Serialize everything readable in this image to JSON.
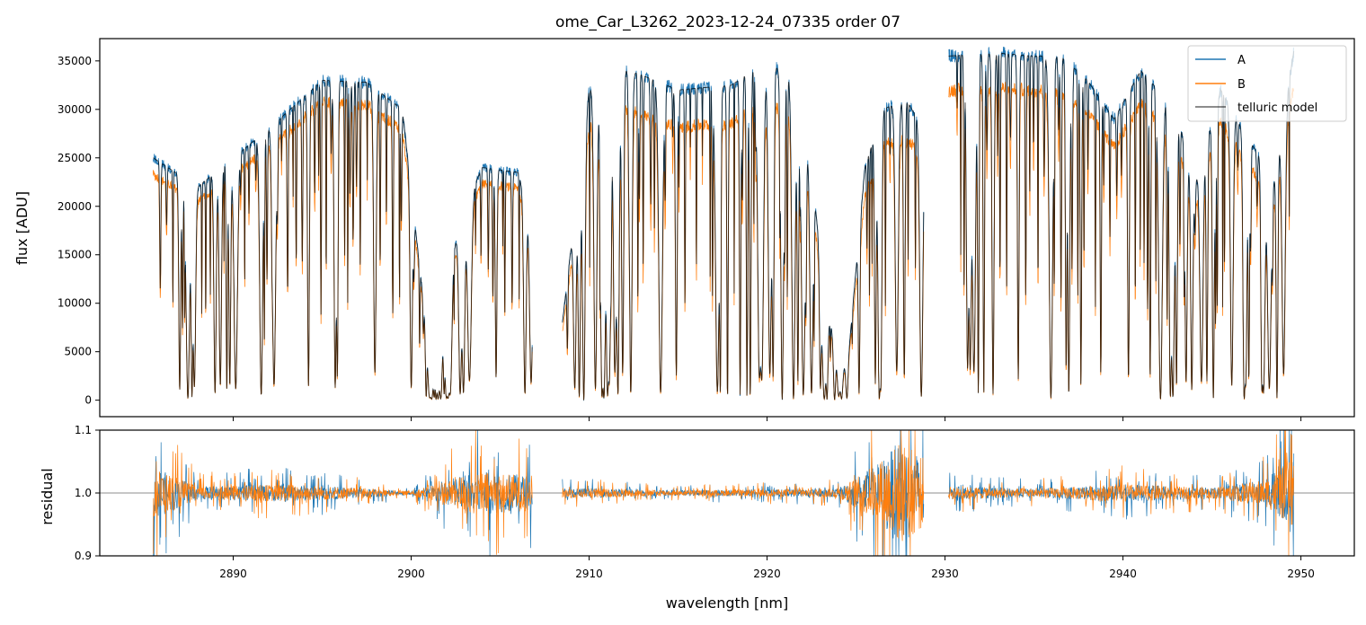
{
  "chart_data": [
    {
      "panel": "flux",
      "type": "line",
      "title": "ome_Car_L3262_2023-12-24_07335  order 07",
      "xlabel": "",
      "ylabel": "flux [ADU]",
      "xlim": [
        2882.5,
        2953.0
      ],
      "ylim": [
        -1700,
        37300
      ],
      "yticks": [
        0,
        5000,
        10000,
        15000,
        20000,
        25000,
        30000,
        35000
      ],
      "ytick_labels": [
        "0",
        "5000",
        "10000",
        "15000",
        "20000",
        "25000",
        "30000",
        "35000"
      ],
      "xticks": [
        2890,
        2900,
        2910,
        2920,
        2930,
        2940,
        2950
      ],
      "legend": {
        "position": "top-right",
        "entries": [
          {
            "label": "A",
            "color": "#1f77b4"
          },
          {
            "label": "B",
            "color": "#ff7f0e"
          },
          {
            "label": "telluric model",
            "color": "#000000"
          }
        ]
      },
      "windows": [
        {
          "range": [
            2885.5,
            2906.8
          ],
          "continuum": [
            [
              2885.5,
              25000
            ],
            [
              2888,
              22000
            ],
            [
              2892,
              28000
            ],
            [
              2895,
              33000
            ],
            [
              2897.5,
              32800
            ],
            [
              2899.5,
              30000
            ],
            [
              2901,
              5000
            ],
            [
              2903,
              20000
            ],
            [
              2904,
              24000
            ],
            [
              2906,
              23500
            ],
            [
              2906.8,
              18000
            ]
          ],
          "b_scale": 0.93,
          "depth": [
            [
              2885.5,
              0.3
            ],
            [
              2889.2,
              0.55
            ],
            [
              2891.5,
              0.45
            ],
            [
              2893.8,
              0.35
            ],
            [
              2899.8,
              0.12
            ],
            [
              2900.6,
              0.92
            ],
            [
              2901.5,
              1.0
            ],
            [
              2902.4,
              0.5
            ],
            [
              2905.0,
              0.45
            ],
            [
              2906.8,
              0.6
            ]
          ]
        },
        {
          "range": [
            2908.5,
            2928.8
          ],
          "continuum": [
            [
              2908.5,
              8000
            ],
            [
              2910,
              32000
            ],
            [
              2911.5,
              34500
            ],
            [
              2913,
              33500
            ],
            [
              2915,
              32000
            ],
            [
              2918,
              32500
            ],
            [
              2920,
              35000
            ],
            [
              2921.5,
              33000
            ],
            [
              2922.5,
              25000
            ],
            [
              2923.2,
              9500
            ],
            [
              2924.5,
              3000
            ],
            [
              2925.5,
              24000
            ],
            [
              2926.5,
              30000
            ],
            [
              2927.8,
              31000
            ],
            [
              2928.8,
              28000
            ]
          ],
          "b_scale": 0.88,
          "depth": [
            [
              2908.5,
              0.4
            ],
            [
              2912,
              0.45
            ],
            [
              2916.5,
              0.35
            ],
            [
              2920,
              0.4
            ],
            [
              2922.5,
              0.55
            ],
            [
              2923.8,
              0.85
            ],
            [
              2924.6,
              0.35
            ],
            [
              2926.5,
              0.4
            ],
            [
              2928.8,
              0.5
            ]
          ]
        },
        {
          "range": [
            2930.2,
            2949.6
          ],
          "continuum": [
            [
              2930.2,
              35500
            ],
            [
              2933,
              35800
            ],
            [
              2935,
              35500
            ],
            [
              2936.5,
              35500
            ],
            [
              2938,
              33000
            ],
            [
              2939.5,
              29000
            ],
            [
              2941,
              34000
            ],
            [
              2943,
              30000
            ],
            [
              2944,
              22000
            ],
            [
              2945.5,
              32000
            ],
            [
              2947,
              27000
            ],
            [
              2948.5,
              23000
            ],
            [
              2949.6,
              36000
            ]
          ],
          "b_scale": 0.9,
          "depth": [
            [
              2930.2,
              0.4
            ],
            [
              2934,
              0.35
            ],
            [
              2938,
              0.45
            ],
            [
              2941,
              0.5
            ],
            [
              2944,
              0.55
            ],
            [
              2946,
              0.45
            ],
            [
              2949.6,
              0.55
            ]
          ]
        }
      ]
    },
    {
      "panel": "residual",
      "type": "line",
      "xlabel": "wavelength [nm]",
      "ylabel": "residual",
      "xlim": [
        2882.5,
        2953.0
      ],
      "ylim": [
        0.9,
        1.1
      ],
      "yticks": [
        0.9,
        1.0,
        1.1
      ],
      "ytick_labels": [
        "0.9",
        "1.0",
        "1.1"
      ],
      "xticks": [
        2890,
        2900,
        2910,
        2920,
        2930,
        2940,
        2950
      ],
      "xtick_labels": [
        "2890",
        "2900",
        "2910",
        "2920",
        "2930",
        "2940",
        "2950"
      ],
      "reference_line": 1.0,
      "noise": [
        [
          2885.5,
          0.06
        ],
        [
          2888,
          0.015
        ],
        [
          2893,
          0.02
        ],
        [
          2897,
          0.012
        ],
        [
          2900,
          0.004
        ],
        [
          2903.5,
          0.05
        ],
        [
          2906.8,
          0.04
        ],
        [
          2908.5,
          0.012
        ],
        [
          2915,
          0.006
        ],
        [
          2920,
          0.008
        ],
        [
          2924,
          0.01
        ],
        [
          2926,
          0.06
        ],
        [
          2927.5,
          0.12
        ],
        [
          2928.8,
          0.08
        ],
        [
          2930.2,
          0.015
        ],
        [
          2935,
          0.01
        ],
        [
          2940,
          0.02
        ],
        [
          2945,
          0.012
        ],
        [
          2948,
          0.03
        ],
        [
          2949.6,
          0.08
        ]
      ]
    }
  ]
}
